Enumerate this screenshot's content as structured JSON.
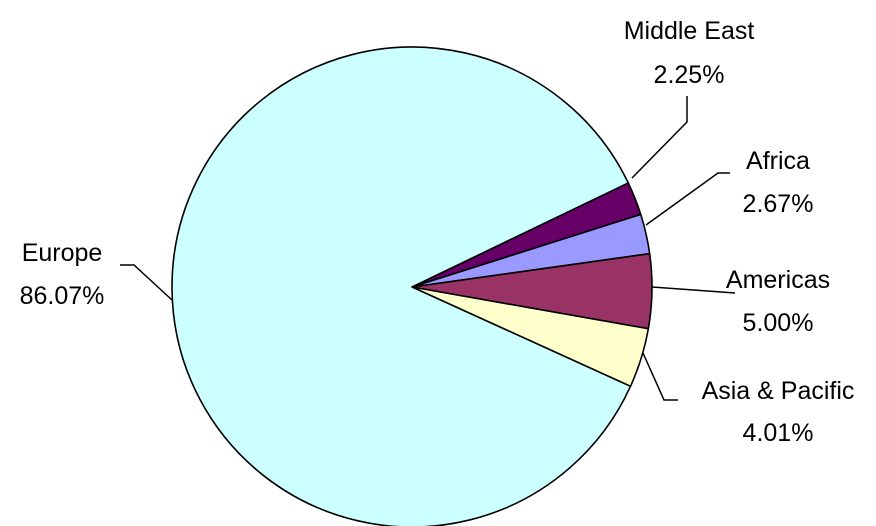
{
  "chart_data": {
    "type": "pie",
    "title": "",
    "slices": [
      {
        "label": "Middle East",
        "value": 2.25,
        "value_label": "2.25%",
        "color": "#660066"
      },
      {
        "label": "Africa",
        "value": 2.67,
        "value_label": "2.67%",
        "color": "#9999ff"
      },
      {
        "label": "Americas",
        "value": 5.0,
        "value_label": "5.00%",
        "color": "#993366"
      },
      {
        "label": "Asia & Pacific",
        "value": 4.01,
        "value_label": "4.01%",
        "color": "#ffffcc"
      },
      {
        "label": "Europe",
        "value": 86.07,
        "value_label": "86.07%",
        "color": "#ccffff"
      }
    ],
    "legend": "none",
    "data_labels": "outside with leader lines"
  }
}
